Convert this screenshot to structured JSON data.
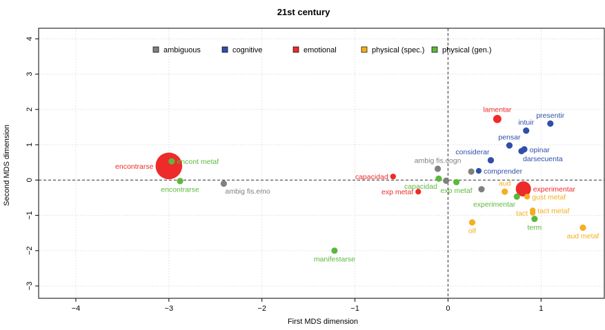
{
  "chart_data": {
    "type": "scatter",
    "title": "21st century",
    "xlabel": "First MDS dimension",
    "ylabel": "Second MDS dimension",
    "xlim": [
      -4.4,
      1.68
    ],
    "ylim": [
      -3.35,
      4.3
    ],
    "xticks": [
      -4,
      -3,
      -2,
      -1,
      0,
      1
    ],
    "yticks": [
      -3,
      -2,
      -1,
      0,
      1,
      2,
      3,
      4
    ],
    "xtick_labels": [
      "−4",
      "−3",
      "−2",
      "−1",
      "0",
      "1"
    ],
    "ytick_labels": [
      "−3",
      "−2",
      "−1",
      "0",
      "1",
      "2",
      "3",
      "4"
    ],
    "grid": true,
    "reference_lines": {
      "x": 0,
      "y": 0
    },
    "legend": {
      "placement": "top",
      "entries": [
        {
          "name": "ambiguous",
          "color": "#808080"
        },
        {
          "name": "cognitive",
          "color": "#2f4fa8"
        },
        {
          "name": "emotional",
          "color": "#ee2a2a"
        },
        {
          "name": "physical (spec.)",
          "color": "#f5ae1f"
        },
        {
          "name": "physical (gen.)",
          "color": "#5cb83c"
        }
      ]
    },
    "points": [
      {
        "label": "encontrarse",
        "group": "emotional",
        "x": -3.0,
        "y": 0.4,
        "size": 4.2,
        "anchor": "left"
      },
      {
        "label": "encont metaf",
        "group": "physical (gen.)",
        "x": -2.97,
        "y": 0.53,
        "size": 1,
        "anchor": "right"
      },
      {
        "label": "encontrarse",
        "group": "physical (gen.)",
        "x": -2.88,
        "y": -0.03,
        "size": 1,
        "anchor": "below"
      },
      {
        "label": "ambig fis.emo",
        "group": "ambiguous",
        "x": -2.41,
        "y": -0.1,
        "size": 1,
        "anchor": "below-right"
      },
      {
        "label": "manifestarse",
        "group": "physical (gen.)",
        "x": -1.22,
        "y": -2.0,
        "size": 1,
        "anchor": "below"
      },
      {
        "label": "capacidad",
        "group": "emotional",
        "x": -0.59,
        "y": 0.1,
        "size": 0.9,
        "anchor": "left"
      },
      {
        "label": "exp metaf",
        "group": "emotional",
        "x": -0.32,
        "y": -0.33,
        "size": 0.9,
        "anchor": "left"
      },
      {
        "label": "ambig fis.cogn",
        "group": "ambiguous",
        "x": -0.11,
        "y": 0.32,
        "size": 1,
        "anchor": "above"
      },
      {
        "label": "capacidad",
        "group": "physical (gen.)",
        "x": -0.1,
        "y": 0.04,
        "size": 1,
        "anchor": "below-left"
      },
      {
        "label": "",
        "group": "ambiguous",
        "x": -0.02,
        "y": -0.02,
        "size": 1,
        "anchor": "none"
      },
      {
        "label": "exp metaf",
        "group": "physical (gen.)",
        "x": 0.09,
        "y": -0.06,
        "size": 1,
        "anchor": "below"
      },
      {
        "label": "",
        "group": "ambiguous",
        "x": 0.25,
        "y": 0.24,
        "size": 1,
        "anchor": "none"
      },
      {
        "label": "comprender",
        "group": "cognitive",
        "x": 0.33,
        "y": 0.26,
        "size": 0.9,
        "anchor": "right"
      },
      {
        "label": "",
        "group": "ambiguous",
        "x": 0.36,
        "y": -0.26,
        "size": 1,
        "anchor": "none"
      },
      {
        "label": "considerar",
        "group": "cognitive",
        "x": 0.46,
        "y": 0.56,
        "size": 1,
        "anchor": "above-left"
      },
      {
        "label": "lamentar",
        "group": "emotional",
        "x": 0.53,
        "y": 1.73,
        "size": 1.3,
        "anchor": "above"
      },
      {
        "label": "aud",
        "group": "physical (spec.)",
        "x": 0.61,
        "y": -0.33,
        "size": 1,
        "anchor": "above"
      },
      {
        "label": "pensar",
        "group": "cognitive",
        "x": 0.66,
        "y": 0.98,
        "size": 1,
        "anchor": "above"
      },
      {
        "label": "experimentar",
        "group": "physical (gen.)",
        "x": 0.74,
        "y": -0.47,
        "size": 1,
        "anchor": "below-left"
      },
      {
        "label": "darsecuenta",
        "group": "cognitive",
        "x": 0.79,
        "y": 0.82,
        "size": 1,
        "anchor": "below-right"
      },
      {
        "label": "experimentar",
        "group": "emotional",
        "x": 0.81,
        "y": -0.25,
        "size": 2.4,
        "anchor": "right"
      },
      {
        "label": "opinar",
        "group": "cognitive",
        "x": 0.82,
        "y": 0.87,
        "size": 1,
        "anchor": "right"
      },
      {
        "label": "intuir",
        "group": "cognitive",
        "x": 0.84,
        "y": 1.4,
        "size": 1,
        "anchor": "above"
      },
      {
        "label": "gust metaf",
        "group": "physical (spec.)",
        "x": 0.85,
        "y": -0.47,
        "size": 0.9,
        "anchor": "right"
      },
      {
        "label": "tact metaf",
        "group": "physical (spec.)",
        "x": 0.91,
        "y": -0.86,
        "size": 0.9,
        "anchor": "right"
      },
      {
        "label": "tact",
        "group": "physical (spec.)",
        "x": 0.91,
        "y": -0.93,
        "size": 0.9,
        "anchor": "left"
      },
      {
        "label": "term",
        "group": "physical (gen.)",
        "x": 0.93,
        "y": -1.1,
        "size": 1,
        "anchor": "below"
      },
      {
        "label": "olf",
        "group": "physical (spec.)",
        "x": 0.26,
        "y": -1.2,
        "size": 1,
        "anchor": "below"
      },
      {
        "label": "presentir",
        "group": "cognitive",
        "x": 1.1,
        "y": 1.6,
        "size": 1,
        "anchor": "above"
      },
      {
        "label": "aud metaf",
        "group": "physical (spec.)",
        "x": 1.45,
        "y": -1.35,
        "size": 1,
        "anchor": "below"
      }
    ]
  }
}
